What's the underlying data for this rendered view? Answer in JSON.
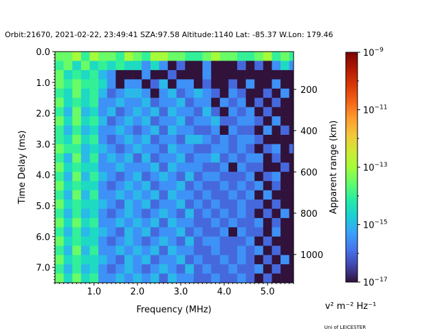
{
  "chart_data": {
    "type": "heatmap",
    "title": "Orbit:21670, 2021-02-22, 23:49:41 SZA:97.58 Altitude:1140 Lat: -85.37 W.Lon: 179.46",
    "xlabel": "Frequency (MHz)",
    "ylabel": "Time Delay (ms)",
    "ylabel_right": "Apparent range (km)",
    "colorbar_label": "v² m⁻² Hz⁻¹",
    "credit": "Uni of LEICESTER",
    "xlim": [
      0.1,
      5.6
    ],
    "ylim": [
      7.5,
      0.0
    ],
    "ylim_right": [
      17,
      1137
    ],
    "x_ticks": [
      {
        "v": 1.0,
        "label": "1.0"
      },
      {
        "v": 2.0,
        "label": "2.0"
      },
      {
        "v": 3.0,
        "label": "3.0"
      },
      {
        "v": 4.0,
        "label": "4.0"
      },
      {
        "v": 5.0,
        "label": "5.0"
      }
    ],
    "y_ticks": [
      {
        "v": 0,
        "label": "0.0"
      },
      {
        "v": 1,
        "label": "1.0"
      },
      {
        "v": 2,
        "label": "2.0"
      },
      {
        "v": 3,
        "label": "3.0"
      },
      {
        "v": 4,
        "label": "4.0"
      },
      {
        "v": 5,
        "label": "5.0"
      },
      {
        "v": 6,
        "label": "6.0"
      },
      {
        "v": 7,
        "label": "7.0"
      }
    ],
    "y_right_ticks": [
      {
        "v": 200,
        "label": "200"
      },
      {
        "v": 400,
        "label": "400"
      },
      {
        "v": 600,
        "label": "600"
      },
      {
        "v": 800,
        "label": "800"
      },
      {
        "v": 1000,
        "label": "1000"
      }
    ],
    "colorbar": {
      "scale": "log",
      "range_exp": [
        -17,
        -9
      ],
      "ticks": [
        {
          "exp": -9,
          "label": "10",
          "sup": "−9"
        },
        {
          "exp": -11,
          "label": "10",
          "sup": "−11"
        },
        {
          "exp": -13,
          "label": "10",
          "sup": "−13"
        },
        {
          "exp": -15,
          "label": "10",
          "sup": "−15"
        },
        {
          "exp": -17,
          "label": "10",
          "sup": "−17"
        }
      ],
      "colormap": [
        "#30123b",
        "#4145ab",
        "#4675ed",
        "#39a2fc",
        "#1bcfd4",
        "#24eca6",
        "#61fc6c",
        "#a4fc3b",
        "#d1e834",
        "#f3c63a",
        "#fe9b2d",
        "#f36315",
        "#d93806",
        "#b11901",
        "#7a0403"
      ]
    },
    "grid": {
      "freq_start": 0.1,
      "freq_step": 0.2,
      "delay_start": 0.0,
      "delay_step": 0.3,
      "encoding": "digit n => log10 power = -17 + 0.5*n (0 = background)",
      "rows": [
        "7786877687688776678776678676",
        "6757565655353020030002020353",
        "7565643000300200030000000000",
        "7676653033024033020020300300",
        "6575642344303423432032002030",
        "7565633433423342330323020200",
        "6474534234342433242032302000",
        "7575642343423342334223320300",
        "6464533432342433223032203020",
        "6575632343423324432323320000",
        "7664543234332433223323202302",
        "6474634342423342334232330200",
        "7565533433342433322303220020",
        "6474643234234324233222302300",
        "7565532343423342322323230200",
        "6474633434342433232232303000",
        "7565543243423342323223220200",
        "6464532343234324232323202030",
        "7575633434342433223232230200",
        "6464543243423342322303220300",
        "7565532343234324233222302000",
        "6474633434342433223223230200",
        "7565543243423342322323202030",
        "6464532343234324232232230200",
        "7575633434342433223223202000"
      ]
    }
  }
}
